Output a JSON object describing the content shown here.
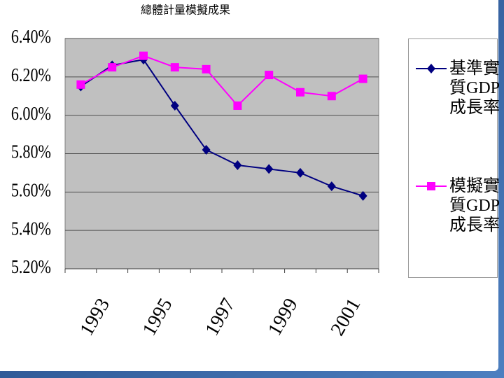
{
  "chart_data": {
    "type": "line",
    "title": "總體計量模擬成果",
    "categories": [
      "1993",
      null,
      "1995",
      null,
      "1997",
      null,
      "1999",
      null,
      "2001",
      null
    ],
    "series": [
      {
        "name": "基準實質GDP成長率",
        "color": "#000080",
        "marker": "diamond",
        "values": [
          6.15,
          6.26,
          6.29,
          6.05,
          5.82,
          5.74,
          5.72,
          5.7,
          5.63,
          5.58
        ]
      },
      {
        "name": "模擬實質GDP成長率",
        "color": "#ff00ff",
        "marker": "square",
        "values": [
          6.16,
          6.25,
          6.31,
          6.25,
          6.24,
          6.05,
          6.21,
          6.12,
          6.1,
          6.19
        ]
      }
    ],
    "ylim": [
      5.2,
      6.4
    ],
    "yticks": [
      {
        "value": 5.2,
        "label": "5.20%"
      },
      {
        "value": 5.4,
        "label": "5.40%"
      },
      {
        "value": 5.6,
        "label": "5.60%"
      },
      {
        "value": 5.8,
        "label": "5.80%"
      },
      {
        "value": 6.0,
        "label": "6.00%"
      },
      {
        "value": 6.2,
        "label": "6.20%"
      },
      {
        "value": 6.4,
        "label": "6.40%"
      }
    ],
    "grid": true,
    "legend": "right"
  }
}
